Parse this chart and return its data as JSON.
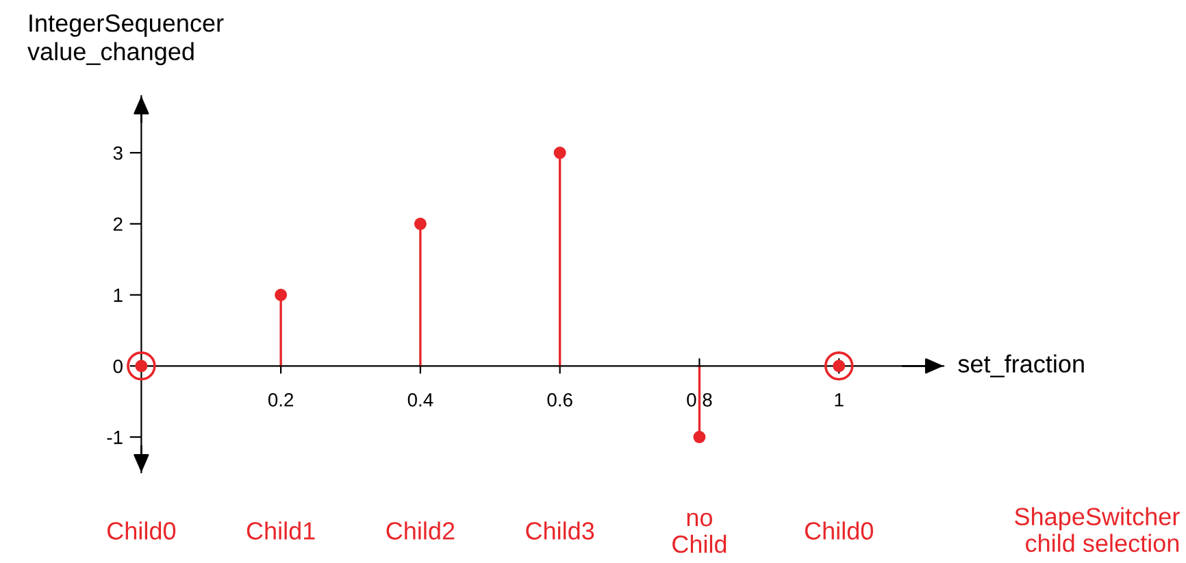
{
  "chart_data": {
    "type": "lollipop",
    "xlabel": "set_fraction",
    "ylabel": "IntegerSequencer\nvalue_changed",
    "x": [
      0,
      0.2,
      0.4,
      0.6,
      0.8,
      1
    ],
    "series": [
      {
        "color": "#e8262a",
        "values": [
          0,
          1,
          2,
          3,
          -1,
          0
        ]
      }
    ],
    "xlim": [
      -0.02,
      1.15
    ],
    "ylim": [
      -1.5,
      3.8
    ],
    "xticks": [
      0.2,
      0.4,
      0.6,
      0.8,
      1
    ],
    "yticks": [
      -1,
      0,
      1,
      2,
      3
    ],
    "marker": "circle",
    "grid": false,
    "legend": false,
    "annotations": [
      "Child0",
      "Child1",
      "Child2",
      "Child3",
      "no\nChild",
      "Child0",
      "ShapeSwitcher\nchild selection"
    ]
  }
}
